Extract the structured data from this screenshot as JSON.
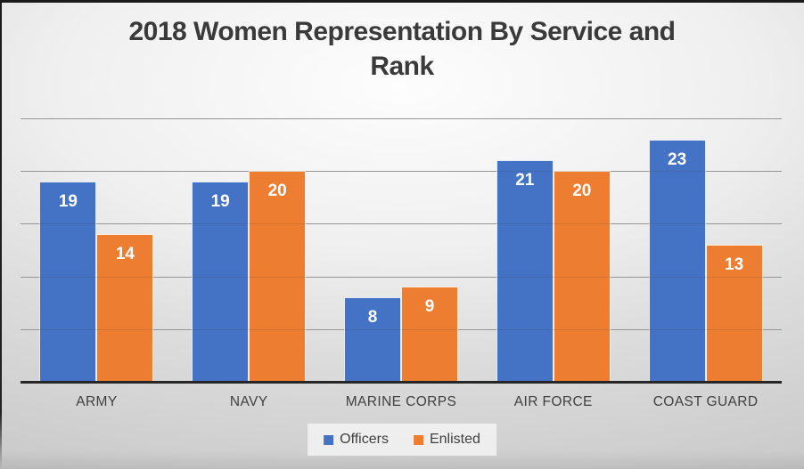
{
  "title": "2018 Women Representation By Service and Rank",
  "chart_data": {
    "type": "bar",
    "title": "2018 Women Representation By Service and Rank",
    "categories": [
      "ARMY",
      "NAVY",
      "MARINE CORPS",
      "AIR FORCE",
      "COAST GUARD"
    ],
    "series": [
      {
        "name": "Officers",
        "color": "#4472C4",
        "values": [
          19,
          19,
          8,
          21,
          23
        ]
      },
      {
        "name": "Enlisted",
        "color": "#ED7D31",
        "values": [
          14,
          20,
          9,
          20,
          13
        ]
      }
    ],
    "xlabel": "",
    "ylabel": "",
    "ylim": [
      0,
      25
    ],
    "gridline_step": 5,
    "grid": true,
    "legend_position": "bottom",
    "data_labels": "inside-top-white"
  },
  "colors": {
    "officers": "#4472C4",
    "enlisted": "#ED7D31",
    "gridline": "#a6a6a6",
    "axis_line": "#262626",
    "title_text": "#3a3a3a",
    "category_text": "#404040",
    "data_label_text": "#ffffff",
    "legend_background": "#f3f3f3"
  }
}
